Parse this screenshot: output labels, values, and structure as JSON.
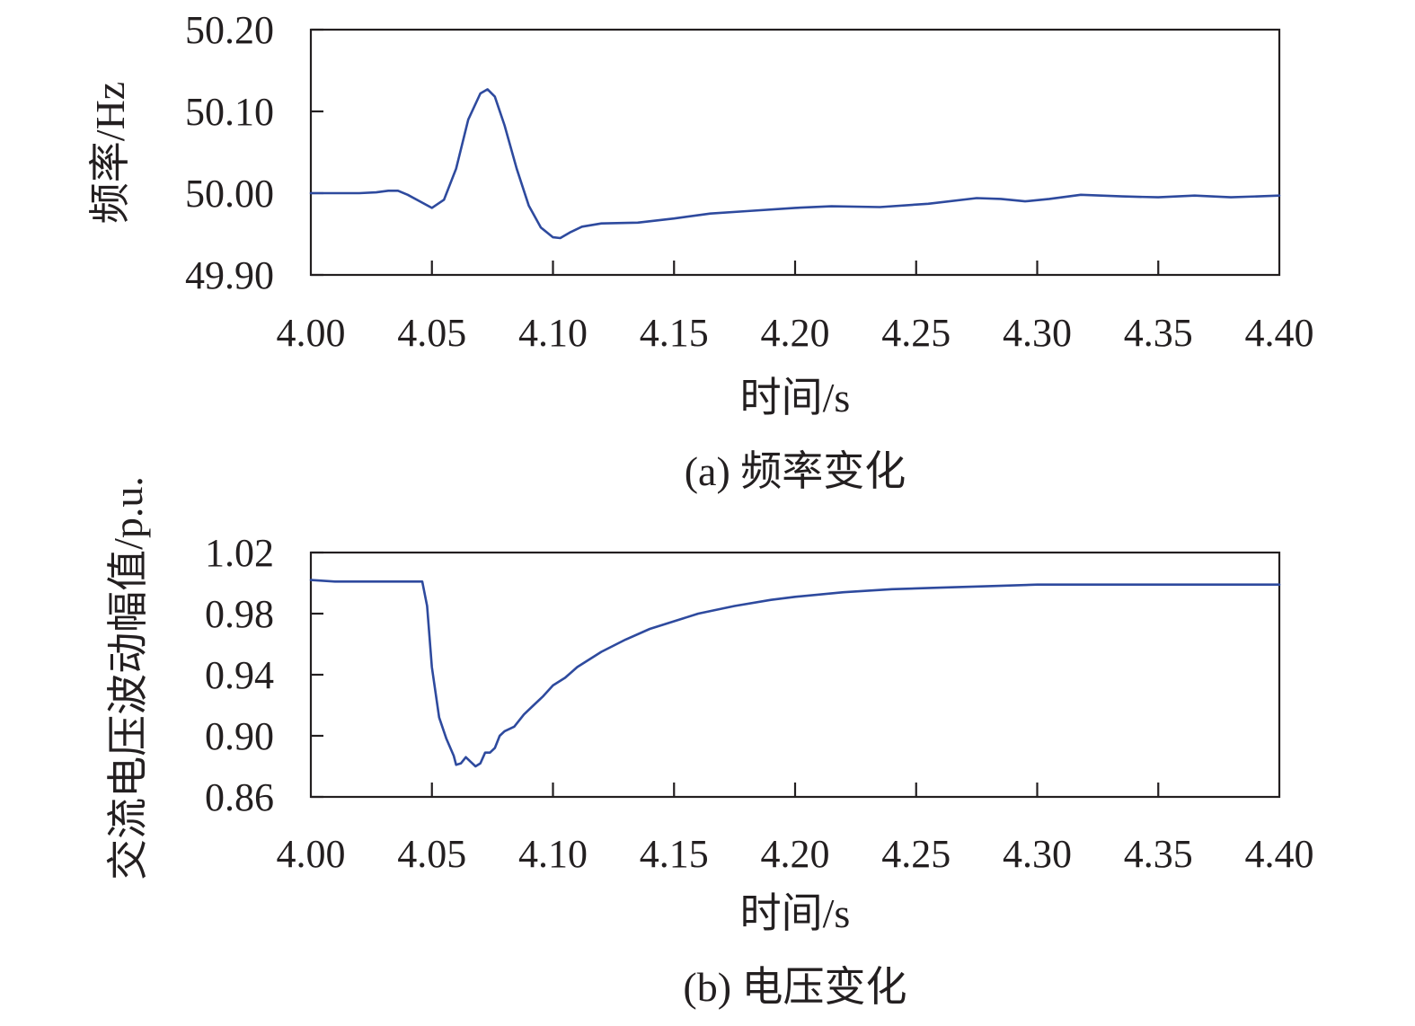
{
  "colors": {
    "series": "#2e4a9e",
    "axis": "#231f20"
  },
  "chart_data": [
    {
      "type": "line",
      "caption": "(a) 频率变化",
      "xlabel": "时间/s",
      "ylabel": "频率/Hz",
      "xlim": [
        4.0,
        4.4
      ],
      "ylim": [
        49.9,
        50.2
      ],
      "x_ticks": [
        "4.00",
        "4.05",
        "4.10",
        "4.15",
        "4.20",
        "4.25",
        "4.30",
        "4.35",
        "4.40"
      ],
      "y_ticks": [
        "50.20",
        "50.10",
        "50.00",
        "49.90"
      ],
      "series": [
        {
          "x": [
            4.0,
            4.02,
            4.027,
            4.032,
            4.036,
            4.04,
            4.045,
            4.05,
            4.055,
            4.06,
            4.065,
            4.07,
            4.073,
            4.076,
            4.08,
            4.085,
            4.09,
            4.095,
            4.1,
            4.103,
            4.107,
            4.112,
            4.12,
            4.135,
            4.15,
            4.165,
            4.18,
            4.2,
            4.215,
            4.235,
            4.255,
            4.275,
            4.285,
            4.295,
            4.305,
            4.318,
            4.335,
            4.35,
            4.365,
            4.38,
            4.4
          ],
          "y": [
            50.0,
            50.0,
            50.001,
            50.003,
            50.003,
            49.998,
            49.99,
            49.982,
            49.992,
            50.03,
            50.09,
            50.122,
            50.127,
            50.118,
            50.083,
            50.03,
            49.985,
            49.958,
            49.946,
            49.945,
            49.952,
            49.959,
            49.963,
            49.964,
            49.969,
            49.975,
            49.978,
            49.982,
            49.984,
            49.983,
            49.987,
            49.994,
            49.993,
            49.99,
            49.993,
            49.998,
            49.996,
            49.995,
            49.997,
            49.995,
            49.997
          ]
        }
      ]
    },
    {
      "type": "line",
      "caption": "(b) 电压变化",
      "xlabel": "时间/s",
      "ylabel": "交流电压波动幅值/p.u.",
      "xlim": [
        4.0,
        4.4
      ],
      "ylim": [
        0.86,
        1.02
      ],
      "x_ticks": [
        "4.00",
        "4.05",
        "4.10",
        "4.15",
        "4.20",
        "4.25",
        "4.30",
        "4.35",
        "4.40"
      ],
      "y_ticks": [
        "1.02",
        "0.98",
        "0.94",
        "0.90",
        "0.86"
      ],
      "series": [
        {
          "x": [
            4.0,
            4.01,
            4.03,
            4.046,
            4.048,
            4.05,
            4.053,
            4.056,
            4.059,
            4.06,
            4.062,
            4.064,
            4.066,
            4.068,
            4.07,
            4.072,
            4.074,
            4.076,
            4.078,
            4.08,
            4.084,
            4.088,
            4.092,
            4.096,
            4.1,
            4.105,
            4.11,
            4.12,
            4.13,
            4.14,
            4.15,
            4.16,
            4.175,
            4.19,
            4.2,
            4.22,
            4.24,
            4.26,
            4.28,
            4.3,
            4.33,
            4.36,
            4.4
          ],
          "y": [
            1.002,
            1.001,
            1.001,
            1.001,
            0.985,
            0.945,
            0.912,
            0.898,
            0.887,
            0.881,
            0.882,
            0.886,
            0.883,
            0.88,
            0.882,
            0.889,
            0.889,
            0.892,
            0.9,
            0.903,
            0.906,
            0.914,
            0.92,
            0.926,
            0.933,
            0.938,
            0.945,
            0.955,
            0.963,
            0.97,
            0.975,
            0.98,
            0.985,
            0.989,
            0.991,
            0.994,
            0.996,
            0.997,
            0.998,
            0.999,
            0.999,
            0.999,
            0.999
          ]
        }
      ]
    }
  ]
}
